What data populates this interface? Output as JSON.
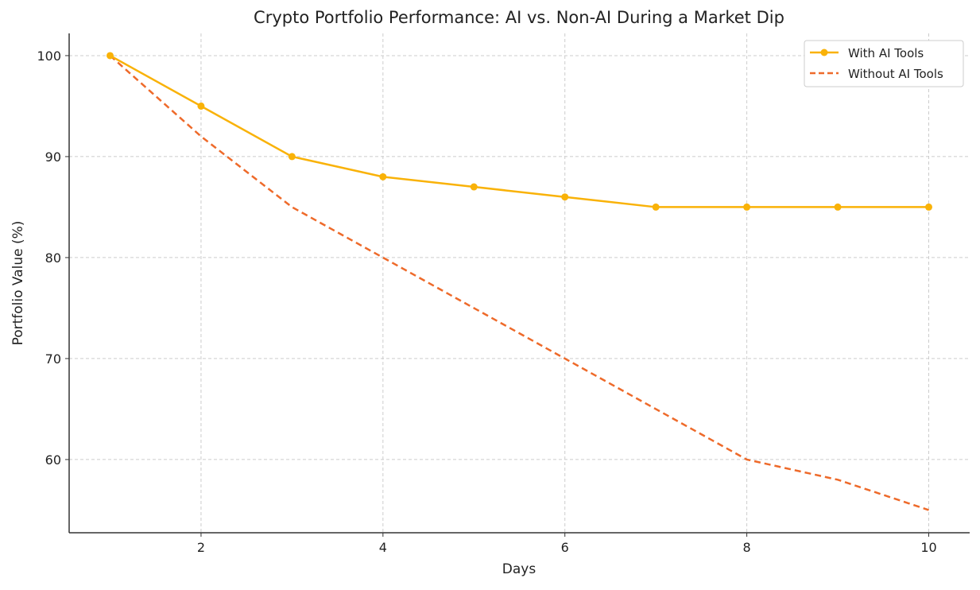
{
  "chart_data": {
    "type": "line",
    "title": "Crypto Portfolio Performance: AI vs. Non-AI During a Market Dip",
    "xlabel": "Days",
    "ylabel": "Portfolio Value (%)",
    "x": [
      1,
      2,
      3,
      4,
      5,
      6,
      7,
      8,
      9,
      10
    ],
    "xlim": [
      0.55,
      10.45
    ],
    "ylim": [
      52.75,
      102.2
    ],
    "xticks": [
      2,
      4,
      6,
      8,
      10
    ],
    "yticks": [
      60,
      70,
      80,
      90,
      100
    ],
    "grid": true,
    "legend_position": "top-right",
    "series": [
      {
        "name": "With AI Tools",
        "values": [
          100,
          95,
          90,
          88,
          87,
          86,
          85,
          85,
          85,
          85
        ],
        "color": "#f9b208",
        "style": "solid",
        "marker": "circle"
      },
      {
        "name": "Without AI Tools",
        "values": [
          100,
          92,
          85,
          80,
          75,
          70,
          65,
          60,
          58,
          55
        ],
        "color": "#ee6a2a",
        "style": "dashed",
        "marker": "none"
      }
    ]
  }
}
